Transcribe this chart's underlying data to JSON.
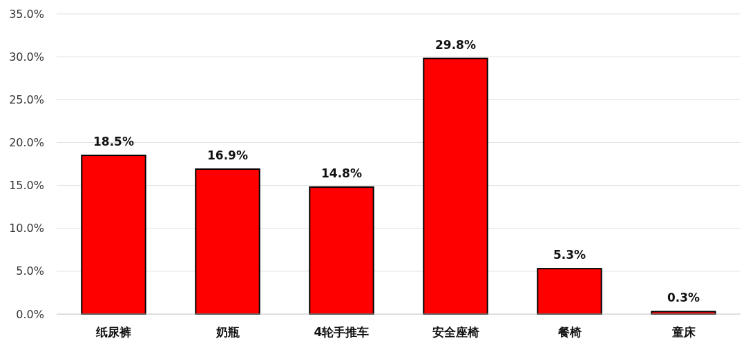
{
  "chart_data": {
    "type": "bar",
    "categories": [
      "纸尿裤",
      "奶瓶",
      "4轮手推车",
      "安全座椅",
      "餐椅",
      "童床"
    ],
    "values": [
      18.5,
      16.9,
      14.8,
      29.8,
      5.3,
      0.3
    ],
    "value_labels": [
      "18.5%",
      "16.9%",
      "14.8%",
      "29.8%",
      "5.3%",
      "0.3%"
    ],
    "color": "#ff0000",
    "ylim": [
      0,
      35
    ],
    "yticks": [
      {
        "value": 0,
        "label": "0.0%"
      },
      {
        "value": 5,
        "label": "5.0%"
      },
      {
        "value": 10,
        "label": "10.0%"
      },
      {
        "value": 15,
        "label": "15.0%"
      },
      {
        "value": 20,
        "label": "20.0%"
      },
      {
        "value": 25,
        "label": "25.0%"
      },
      {
        "value": 30,
        "label": "30.0%"
      },
      {
        "value": 35,
        "label": "35.0%"
      }
    ],
    "grid": "y"
  }
}
